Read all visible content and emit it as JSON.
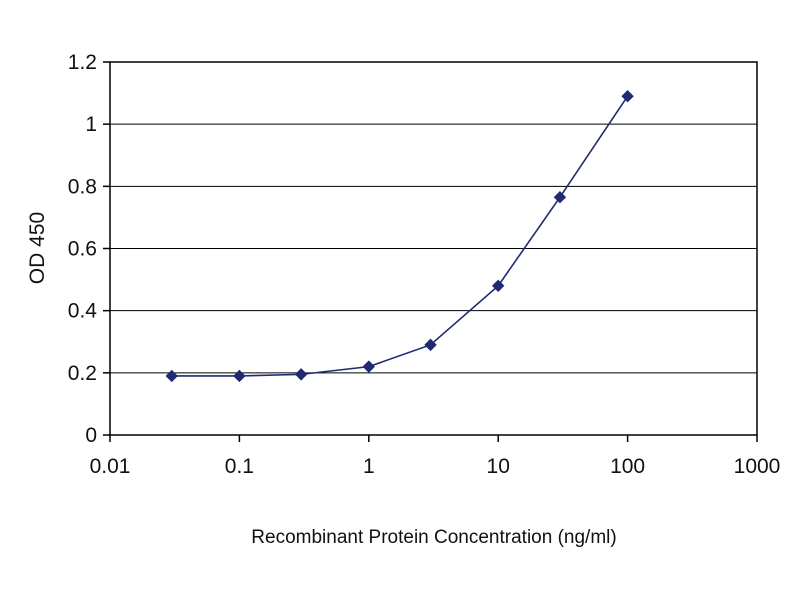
{
  "chart_data": {
    "type": "line",
    "title": "",
    "xlabel": "Recombinant Protein Concentration (ng/ml)",
    "ylabel": "OD 450",
    "x_scale": "log",
    "xlim": [
      0.01,
      1000
    ],
    "ylim": [
      0,
      1.2
    ],
    "xticks": [
      0.01,
      0.1,
      1,
      10,
      100,
      1000
    ],
    "xtick_labels": [
      "0.01",
      "0.1",
      "1",
      "10",
      "100",
      "1000"
    ],
    "yticks": [
      0,
      0.2,
      0.4,
      0.6,
      0.8,
      1,
      1.2
    ],
    "ytick_labels": [
      "0",
      "0.2",
      "0.4",
      "0.6",
      "0.8",
      "1",
      "1.2"
    ],
    "grid": "horizontal",
    "legend": "none",
    "colors": {
      "line": "#1f2a72",
      "marker": "#1f2a72",
      "axis": "#000000",
      "gridline": "#000000",
      "background": "#ffffff"
    },
    "series": [
      {
        "name": "OD 450",
        "marker": "diamond",
        "x": [
          0.03,
          0.1,
          0.3,
          1,
          3,
          10,
          30,
          100
        ],
        "y": [
          0.19,
          0.19,
          0.195,
          0.22,
          0.29,
          0.48,
          0.765,
          1.09
        ]
      }
    ]
  }
}
